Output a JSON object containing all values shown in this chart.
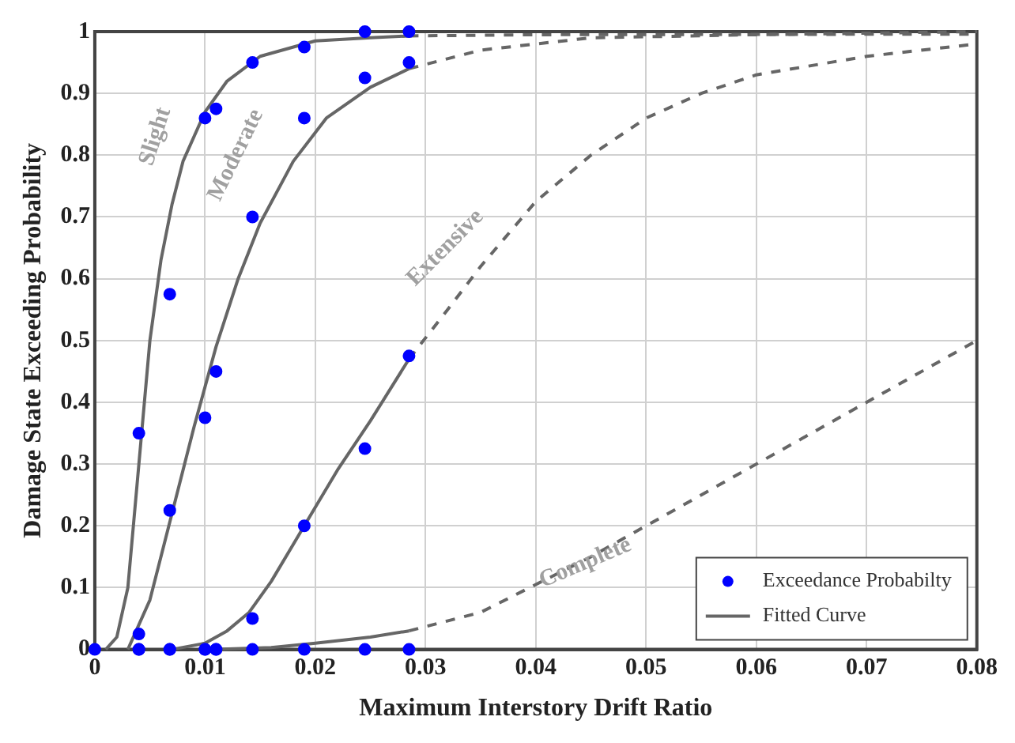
{
  "chart_data": {
    "type": "scatter",
    "xlabel": "Maximum Interstory Drift Ratio",
    "ylabel": "Damage State Exceeding Probability",
    "xlim": [
      0,
      0.08
    ],
    "ylim": [
      0,
      1
    ],
    "xticks": [
      0,
      0.01,
      0.02,
      0.03,
      0.04,
      0.05,
      0.06,
      0.07,
      0.08
    ],
    "yticks": [
      0,
      0.1,
      0.2,
      0.3,
      0.4,
      0.5,
      0.6,
      0.7,
      0.8,
      0.9,
      1
    ],
    "grid": true,
    "legend": "bottom right",
    "annotations": [
      "Slight",
      "Moderate",
      "Extensive",
      "Complete"
    ],
    "series": [
      {
        "name": "Exceedance Probabilty",
        "type": "scatter",
        "marker": "circle",
        "color": "#0000ff",
        "x": [
          0,
          0.004,
          0.0068,
          0.01,
          0.011,
          0.0143,
          0.019,
          0.0245,
          0.0285,
          0.004,
          0.0068,
          0.01,
          0.011,
          0.0143,
          0.019,
          0.0245,
          0.0285,
          0.004,
          0.0068,
          0.01,
          0.011,
          0.0143,
          0.019,
          0.0245,
          0.0285,
          0.004,
          0.0068,
          0.01,
          0.011,
          0.0143,
          0.019,
          0.0245,
          0.0285
        ],
        "values": [
          0,
          0.35,
          0.575,
          0.86,
          0.875,
          0.95,
          0.975,
          1,
          1,
          0.025,
          0.225,
          0.375,
          0.45,
          0.7,
          0.86,
          0.925,
          0.95,
          0,
          0,
          0,
          0,
          0.05,
          0.2,
          0.325,
          0.475,
          0,
          0,
          0,
          0,
          0,
          0,
          0,
          0
        ]
      },
      {
        "name": "Fitted Curve",
        "type": "line",
        "marker": "none",
        "line_style": "solid",
        "color": "#666666",
        "x": [
          0.001,
          0.002,
          0.003,
          0.004,
          0.005,
          0.006,
          0.007,
          0.008,
          0.01,
          0.012,
          0.015,
          0.02,
          0.025,
          0.0285
        ],
        "values": [
          0,
          0.02,
          0.1,
          0.3,
          0.5,
          0.63,
          0.72,
          0.79,
          0.87,
          0.92,
          0.96,
          0.985,
          0.99,
          0.993
        ]
      },
      {
        "type": "line",
        "marker": "none",
        "line_style": "solid",
        "color": "#666666",
        "x": [
          0.003,
          0.005,
          0.007,
          0.009,
          0.011,
          0.013,
          0.015,
          0.018,
          0.021,
          0.025,
          0.0285
        ],
        "values": [
          0,
          0.08,
          0.22,
          0.36,
          0.49,
          0.6,
          0.69,
          0.79,
          0.86,
          0.91,
          0.94
        ]
      },
      {
        "type": "line",
        "marker": "none",
        "line_style": "solid",
        "color": "#666666",
        "x": [
          0.007,
          0.01,
          0.012,
          0.014,
          0.016,
          0.018,
          0.02,
          0.022,
          0.025,
          0.0285
        ],
        "values": [
          0,
          0.01,
          0.03,
          0.06,
          0.11,
          0.17,
          0.23,
          0.29,
          0.37,
          0.47
        ]
      },
      {
        "type": "line",
        "marker": "none",
        "line_style": "solid",
        "color": "#666666",
        "x": [
          0.011,
          0.016,
          0.02,
          0.025,
          0.0285
        ],
        "values": [
          0,
          0.003,
          0.01,
          0.02,
          0.03
        ]
      },
      {
        "type": "line",
        "marker": "none",
        "line_style": "dashed",
        "color": "#666666",
        "x": [
          0.0285,
          0.04,
          0.08
        ],
        "values": [
          0.993,
          0.995,
          0.996
        ]
      },
      {
        "type": "line",
        "marker": "none",
        "line_style": "dashed",
        "color": "#666666",
        "x": [
          0.0285,
          0.035,
          0.045,
          0.06,
          0.08
        ],
        "values": [
          0.94,
          0.97,
          0.99,
          0.995,
          1
        ]
      },
      {
        "type": "line",
        "marker": "none",
        "line_style": "dashed",
        "color": "#666666",
        "x": [
          0.0285,
          0.032,
          0.035,
          0.04,
          0.045,
          0.05,
          0.055,
          0.06,
          0.07,
          0.08
        ],
        "values": [
          0.47,
          0.55,
          0.62,
          0.725,
          0.8,
          0.86,
          0.9,
          0.93,
          0.96,
          0.98
        ]
      },
      {
        "type": "line",
        "marker": "none",
        "line_style": "dashed",
        "color": "#666666",
        "x": [
          0.0285,
          0.035,
          0.04,
          0.045,
          0.05,
          0.055,
          0.06,
          0.065,
          0.07,
          0.075,
          0.08
        ],
        "values": [
          0.03,
          0.06,
          0.105,
          0.15,
          0.2,
          0.25,
          0.3,
          0.35,
          0.4,
          0.45,
          0.5
        ]
      }
    ]
  }
}
